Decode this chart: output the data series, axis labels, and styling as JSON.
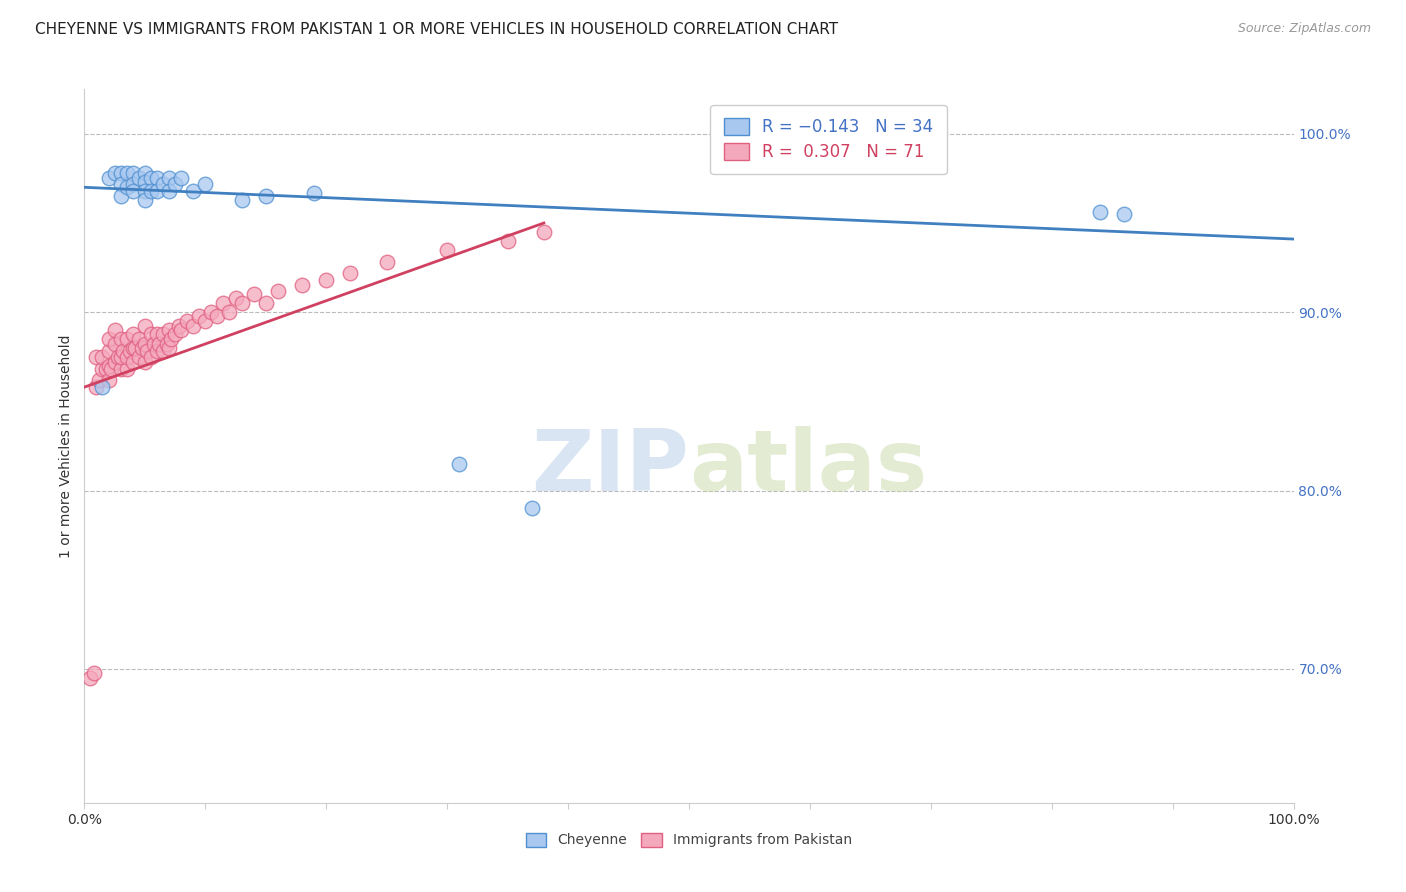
{
  "title": "CHEYENNE VS IMMIGRANTS FROM PAKISTAN 1 OR MORE VEHICLES IN HOUSEHOLD CORRELATION CHART",
  "source": "Source: ZipAtlas.com",
  "ylabel": "1 or more Vehicles in Household",
  "y_tick_labels": [
    "70.0%",
    "80.0%",
    "90.0%",
    "100.0%"
  ],
  "y_tick_values": [
    0.7,
    0.8,
    0.9,
    1.0
  ],
  "y_lim": [
    0.625,
    1.025
  ],
  "x_lim": [
    0.0,
    1.0
  ],
  "legend_blue": "R = −0.143   N = 34",
  "legend_pink": "R =  0.307   N = 71",
  "watermark_zip": "ZIP",
  "watermark_atlas": "atlas",
  "blue_color": "#A8C8F0",
  "pink_color": "#F4A8BC",
  "blue_edge_color": "#5090D0",
  "pink_edge_color": "#E06080",
  "blue_line_color": "#4080C0",
  "pink_line_color": "#D04060",
  "cheyenne_x": [
    0.015,
    0.02,
    0.025,
    0.03,
    0.03,
    0.03,
    0.035,
    0.035,
    0.04,
    0.04,
    0.04,
    0.045,
    0.05,
    0.05,
    0.05,
    0.05,
    0.055,
    0.055,
    0.06,
    0.06,
    0.065,
    0.07,
    0.07,
    0.075,
    0.08,
    0.09,
    0.1,
    0.13,
    0.15,
    0.19,
    0.31,
    0.37,
    0.84,
    0.86
  ],
  "cheyenne_y": [
    0.858,
    0.975,
    0.978,
    0.978,
    0.972,
    0.965,
    0.978,
    0.97,
    0.978,
    0.972,
    0.968,
    0.975,
    0.978,
    0.973,
    0.968,
    0.963,
    0.975,
    0.968,
    0.975,
    0.968,
    0.972,
    0.975,
    0.968,
    0.972,
    0.975,
    0.968,
    0.972,
    0.963,
    0.965,
    0.967,
    0.815,
    0.79,
    0.956,
    0.955
  ],
  "pakistan_x": [
    0.005,
    0.008,
    0.01,
    0.01,
    0.012,
    0.015,
    0.015,
    0.018,
    0.02,
    0.02,
    0.02,
    0.02,
    0.022,
    0.025,
    0.025,
    0.025,
    0.028,
    0.03,
    0.03,
    0.03,
    0.032,
    0.035,
    0.035,
    0.035,
    0.038,
    0.04,
    0.04,
    0.04,
    0.042,
    0.045,
    0.045,
    0.048,
    0.05,
    0.05,
    0.05,
    0.052,
    0.055,
    0.055,
    0.058,
    0.06,
    0.06,
    0.062,
    0.065,
    0.065,
    0.068,
    0.07,
    0.07,
    0.072,
    0.075,
    0.078,
    0.08,
    0.085,
    0.09,
    0.095,
    0.1,
    0.105,
    0.11,
    0.115,
    0.12,
    0.125,
    0.13,
    0.14,
    0.15,
    0.16,
    0.18,
    0.2,
    0.22,
    0.25,
    0.3,
    0.35,
    0.38
  ],
  "pakistan_y": [
    0.695,
    0.698,
    0.858,
    0.875,
    0.862,
    0.868,
    0.875,
    0.868,
    0.862,
    0.87,
    0.878,
    0.885,
    0.868,
    0.872,
    0.882,
    0.89,
    0.875,
    0.868,
    0.875,
    0.885,
    0.878,
    0.868,
    0.875,
    0.885,
    0.878,
    0.872,
    0.88,
    0.888,
    0.88,
    0.875,
    0.885,
    0.88,
    0.872,
    0.882,
    0.892,
    0.878,
    0.875,
    0.888,
    0.882,
    0.878,
    0.888,
    0.882,
    0.878,
    0.888,
    0.882,
    0.88,
    0.89,
    0.885,
    0.888,
    0.892,
    0.89,
    0.895,
    0.892,
    0.898,
    0.895,
    0.9,
    0.898,
    0.905,
    0.9,
    0.908,
    0.905,
    0.91,
    0.905,
    0.912,
    0.915,
    0.918,
    0.922,
    0.928,
    0.935,
    0.94,
    0.945
  ],
  "blue_line_x": [
    0.0,
    1.0
  ],
  "blue_line_y": [
    0.97,
    0.941
  ],
  "pink_line_x": [
    0.0,
    0.38
  ],
  "pink_line_y": [
    0.858,
    0.95
  ],
  "title_fontsize": 11,
  "axis_label_fontsize": 10,
  "tick_fontsize": 10,
  "legend_fontsize": 12,
  "marker_size": 110,
  "bottom_legend_labels": [
    "Cheyenne",
    "Immigrants from Pakistan"
  ]
}
